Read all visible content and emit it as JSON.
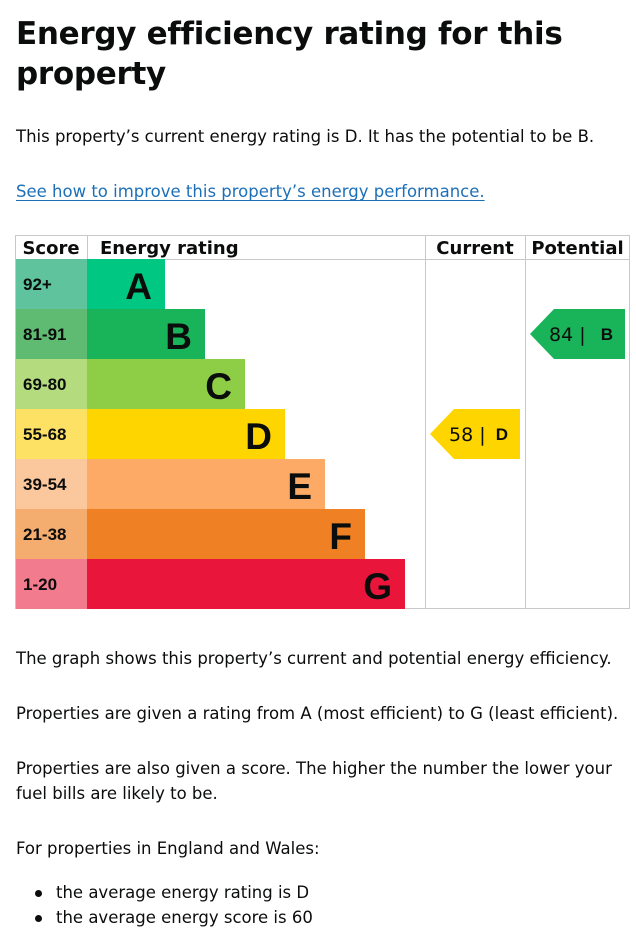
{
  "page": {
    "title": "Energy efficiency rating for this property",
    "intro": "This property’s current energy rating is D. It has the potential to be B.",
    "link_text": "See how to improve this property’s energy performance.",
    "graph_desc": "The graph shows this property’s current and potential energy efficiency.",
    "rating_desc": "Properties are given a rating from A (most efficient) to G (least efficient).",
    "score_desc": "Properties are also given a score. The higher the number the lower your fuel bills are likely to be.",
    "region_intro": "For properties in England and Wales:",
    "averages": [
      "the average energy rating is D",
      "the average energy score is 60"
    ]
  },
  "chart_data": {
    "type": "bar",
    "headers": {
      "score": "Score",
      "rating": "Energy rating",
      "current": "Current",
      "potential": "Potential"
    },
    "bands": [
      {
        "band": "A",
        "range": "92+",
        "min": 92,
        "score_color": "#5fc49d",
        "bar_color": "#00c781"
      },
      {
        "band": "B",
        "range": "81-91",
        "min": 81,
        "score_color": "#5fbb72",
        "bar_color": "#19b459"
      },
      {
        "band": "C",
        "range": "69-80",
        "min": 69,
        "score_color": "#b4dc7f",
        "bar_color": "#8dce46"
      },
      {
        "band": "D",
        "range": "55-68",
        "min": 55,
        "score_color": "#fde165",
        "bar_color": "#ffd500"
      },
      {
        "band": "E",
        "range": "39-54",
        "min": 39,
        "score_color": "#fbc79c",
        "bar_color": "#fcaa65"
      },
      {
        "band": "F",
        "range": "21-38",
        "min": 21,
        "score_color": "#f4ac6f",
        "bar_color": "#ef8023"
      },
      {
        "band": "G",
        "range": "1-20",
        "min": 1,
        "score_color": "#f27b8e",
        "bar_color": "#e9153b"
      }
    ],
    "current": {
      "score": 58,
      "band": "D",
      "color": "#ffd500"
    },
    "potential": {
      "score": 84,
      "band": "B",
      "color": "#19b459"
    }
  }
}
